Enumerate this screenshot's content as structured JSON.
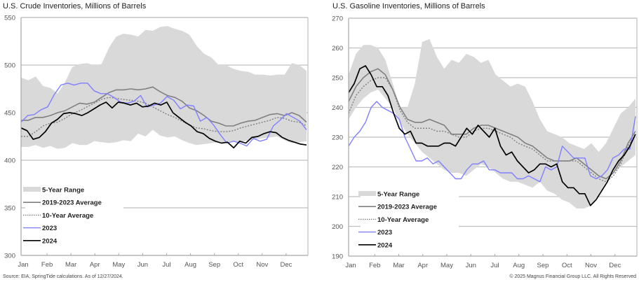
{
  "footer": {
    "source": "Source: EIA, SpringTide calculations. As of 12/27/2024.",
    "copyright": "© 2025 Magnus Financial Group LLC. All Rights Reserved"
  },
  "colors": {
    "range": "#d9d9d9",
    "avg5": "#808080",
    "avg10": "#808080",
    "y2023": "#7f7fff",
    "y2024": "#000000",
    "grid": "#bfbfbf"
  },
  "chart_data": [
    {
      "type": "area",
      "title": "U.S. Crude Inventories, Millions of Barrels",
      "xlabel": "",
      "ylabel": "",
      "ylim": [
        300,
        550
      ],
      "yticks": [
        300,
        350,
        400,
        450,
        500,
        550
      ],
      "grid": true,
      "legend_position": "bottom-left",
      "x_tick_labels": [
        "Jan",
        "Feb",
        "Mar",
        "Apr",
        "May",
        "Jun",
        "Jul",
        "Aug",
        "Sep",
        "Oct",
        "Nov",
        "Dec"
      ],
      "x_points": 40,
      "series": [
        {
          "name": "5-Year Range",
          "kind": "range",
          "high": [
            487,
            484,
            488,
            478,
            476,
            470,
            482,
            498,
            501,
            502,
            500,
            501,
            518,
            530,
            533,
            532,
            530,
            537,
            536,
            540,
            541,
            538,
            536,
            532,
            520,
            512,
            508,
            500,
            500,
            496,
            494,
            493,
            490,
            490,
            489,
            490,
            490,
            502,
            500,
            494
          ],
          "low": [
            414,
            414,
            416,
            413,
            415,
            412,
            413,
            418,
            416,
            416,
            420,
            419,
            418,
            419,
            421,
            420,
            428,
            425,
            432,
            426,
            424,
            425,
            421,
            418,
            416,
            417,
            418,
            419,
            419,
            420,
            419,
            421,
            422,
            423,
            424,
            425,
            421,
            418,
            419,
            420
          ]
        },
        {
          "name": "2019-2023 Average",
          "kind": "line",
          "style": "solid",
          "values": [
            442,
            442,
            445,
            445,
            447,
            450,
            452,
            456,
            460,
            459,
            461,
            466,
            471,
            474,
            474,
            475,
            474,
            475,
            477,
            472,
            468,
            466,
            462,
            455,
            452,
            447,
            441,
            439,
            436,
            436,
            439,
            441,
            442,
            445,
            448,
            449,
            447,
            450,
            447,
            440
          ]
        },
        {
          "name": "10-Year Average",
          "kind": "dotted",
          "values": [
            425,
            425,
            430,
            436,
            439,
            440,
            444,
            449,
            452,
            456,
            460,
            464,
            466,
            465,
            464,
            463,
            462,
            460,
            456,
            452,
            448,
            445,
            441,
            437,
            434,
            433,
            431,
            430,
            430,
            431,
            434,
            436,
            438,
            440,
            442,
            445,
            444,
            441,
            440,
            436
          ]
        },
        {
          "name": "2023",
          "kind": "line",
          "style": "solid",
          "values": [
            440,
            447,
            448,
            453,
            456,
            469,
            479,
            481,
            479,
            481,
            481,
            473,
            470,
            470,
            466,
            461,
            460,
            462,
            468,
            456,
            458,
            460,
            467,
            463,
            454,
            458,
            457,
            441,
            445,
            437,
            427,
            418,
            420,
            418,
            415,
            423,
            420,
            422,
            436,
            442,
            449,
            445,
            441,
            432
          ]
        },
        {
          "name": "2024",
          "kind": "line",
          "style": "solid",
          "values": [
            434,
            431,
            422,
            424,
            430,
            439,
            443,
            449,
            450,
            449,
            447,
            450,
            454,
            458,
            461,
            455,
            461,
            460,
            458,
            460,
            456,
            457,
            460,
            458,
            461,
            450,
            445,
            440,
            436,
            430,
            428,
            423,
            420,
            418,
            419,
            413,
            420,
            418,
            424,
            425,
            428,
            430,
            429,
            424,
            421,
            419,
            417,
            416
          ]
        }
      ]
    },
    {
      "type": "area",
      "title": "U.S. Gasoline Inventories, Millions of Barrels",
      "xlabel": "",
      "ylabel": "",
      "ylim": [
        190,
        270
      ],
      "yticks": [
        190,
        200,
        210,
        220,
        230,
        240,
        250,
        260,
        270
      ],
      "grid": true,
      "legend_position": "bottom-left",
      "x_tick_labels": [
        "Jan",
        "Feb",
        "Mar",
        "Apr",
        "May",
        "Jun",
        "Jul",
        "Aug",
        "Sep",
        "Oct",
        "Nov",
        "Dec"
      ],
      "series": [
        {
          "name": "5-Year Range",
          "kind": "range",
          "high": [
            251,
            258,
            261,
            261,
            260,
            256,
            248,
            240,
            240,
            248,
            262,
            263,
            257,
            253,
            256,
            255,
            258,
            257,
            255,
            256,
            251,
            249,
            247,
            248,
            247,
            242,
            236,
            232,
            231,
            230,
            228,
            227,
            226,
            228,
            225,
            228,
            233,
            238,
            240,
            243
          ],
          "low": [
            236,
            240,
            243,
            245,
            246,
            243,
            240,
            235,
            231,
            228,
            225,
            223,
            221,
            219,
            218,
            218,
            217,
            219,
            221,
            220,
            218,
            216,
            215,
            215,
            214,
            213,
            215,
            212,
            211,
            209,
            208,
            206,
            206,
            207,
            211,
            215,
            218,
            220,
            222,
            224
          ]
        },
        {
          "name": "2019-2023 Average",
          "kind": "line",
          "style": "solid",
          "values": [
            242,
            247,
            250,
            252,
            253,
            251,
            246,
            240,
            236,
            235,
            235,
            236,
            235,
            234,
            231,
            231,
            231,
            233,
            234,
            234,
            233,
            232,
            231,
            230,
            228,
            227,
            225,
            223,
            222,
            222,
            222,
            223,
            221,
            219,
            217,
            216,
            218,
            222,
            228,
            232
          ]
        },
        {
          "name": "10-Year Average",
          "kind": "dotted",
          "values": [
            238,
            244,
            247,
            249,
            250,
            250,
            246,
            239,
            235,
            233,
            233,
            233,
            232,
            232,
            231,
            230,
            230,
            232,
            233,
            233,
            232,
            231,
            230,
            228,
            227,
            226,
            224,
            222,
            222,
            222,
            222,
            222,
            220,
            218,
            216,
            215,
            217,
            221,
            227,
            231
          ]
        },
        {
          "name": "2023",
          "kind": "line",
          "style": "solid",
          "values": [
            227,
            230,
            232,
            235,
            240,
            242,
            240,
            239,
            238,
            236,
            230,
            226,
            222,
            222,
            223,
            221,
            222,
            220,
            218,
            216,
            216,
            219,
            221,
            221,
            222,
            219,
            219,
            218,
            218,
            218,
            216,
            216,
            217,
            216,
            215,
            220,
            219,
            220,
            227,
            225,
            223,
            223,
            223,
            217,
            216,
            217,
            219,
            223,
            224,
            226,
            226,
            237
          ]
        },
        {
          "name": "2024",
          "kind": "line",
          "style": "solid",
          "values": [
            245,
            248,
            253,
            254,
            251,
            247,
            247,
            244,
            238,
            233,
            231,
            232,
            228,
            228,
            227,
            227,
            227,
            228,
            228,
            227,
            230,
            233,
            231,
            234,
            232,
            230,
            233,
            227,
            224,
            225,
            222,
            220,
            218,
            219,
            221,
            221,
            220,
            221,
            215,
            213,
            213,
            211,
            211,
            207,
            209,
            212,
            215,
            219,
            222,
            224,
            227,
            231
          ]
        }
      ]
    }
  ]
}
